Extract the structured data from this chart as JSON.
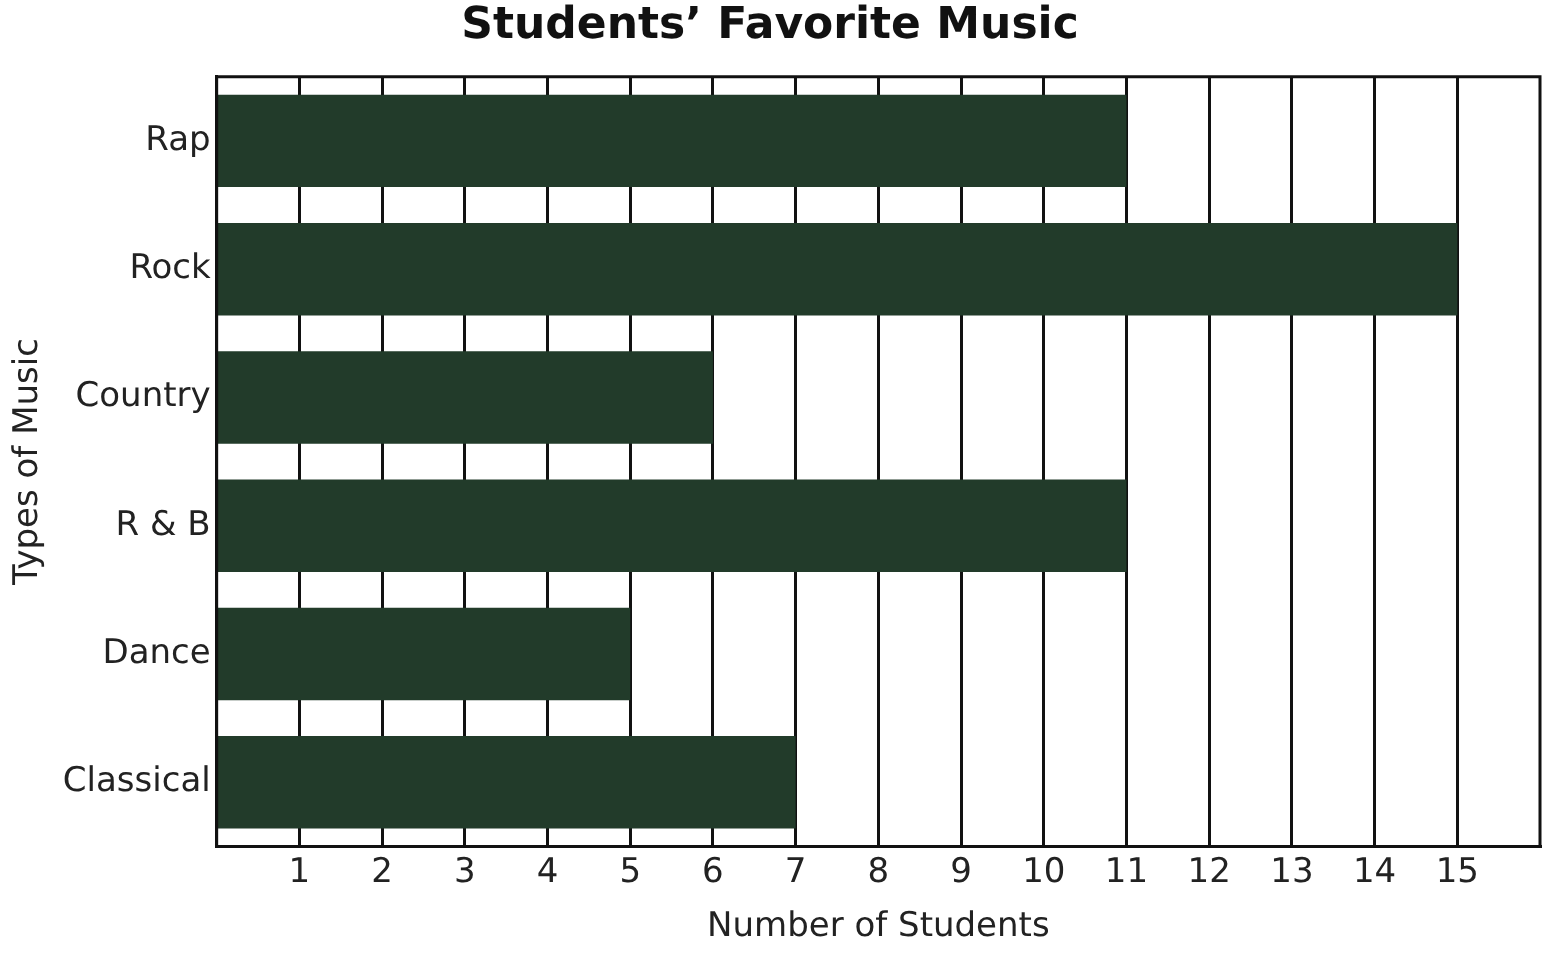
{
  "chart_data": {
    "type": "bar",
    "orientation": "horizontal",
    "title": "Students’ Favorite Music",
    "xlabel": "Number of Students",
    "ylabel": "Types of Music",
    "categories": [
      "Rap",
      "Rock",
      "Country",
      "R & B",
      "Dance",
      "Classical"
    ],
    "values": [
      11,
      15,
      6,
      11,
      5,
      7
    ],
    "color": "#223b2a",
    "xlim": [
      0,
      16
    ],
    "xticks": [
      1,
      2,
      3,
      4,
      5,
      6,
      7,
      8,
      9,
      10,
      11,
      12,
      13,
      14,
      15
    ],
    "grid": "x"
  }
}
